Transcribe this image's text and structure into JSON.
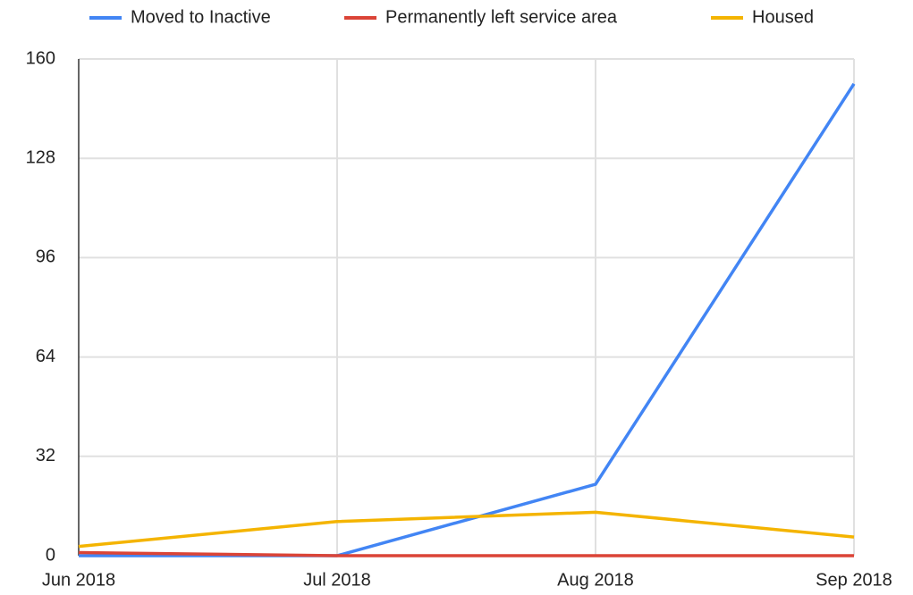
{
  "chart_data": {
    "type": "line",
    "categories": [
      "Jun 2018",
      "Jul 2018",
      "Aug 2018",
      "Sep 2018"
    ],
    "series": [
      {
        "name": "Moved to Inactive",
        "color": "#4285f4",
        "values": [
          0,
          0,
          23,
          152
        ]
      },
      {
        "name": "Permanently left service area",
        "color": "#db4437",
        "values": [
          1,
          0,
          0,
          0
        ]
      },
      {
        "name": "Housed",
        "color": "#f4b400",
        "values": [
          3,
          11,
          14,
          6
        ]
      }
    ],
    "ylim": [
      0,
      160
    ],
    "yticks": [
      0,
      32,
      64,
      96,
      128,
      160
    ],
    "grid": true,
    "legend": "top"
  }
}
